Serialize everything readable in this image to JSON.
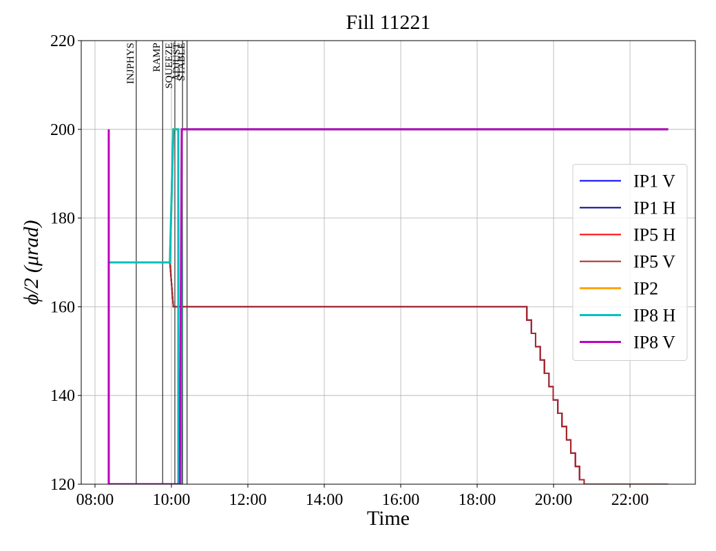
{
  "chart_data": {
    "type": "line",
    "title": "Fill 11221",
    "x_label": "Time",
    "y_label": "ϕ/2 (μrad)",
    "xlim": [
      7.64,
      23.71
    ],
    "ylim": [
      120,
      220
    ],
    "xticks": [
      {
        "value": 8,
        "label": "08:00"
      },
      {
        "value": 10,
        "label": "10:00"
      },
      {
        "value": 12,
        "label": "12:00"
      },
      {
        "value": 14,
        "label": "14:00"
      },
      {
        "value": 16,
        "label": "16:00"
      },
      {
        "value": 18,
        "label": "18:00"
      },
      {
        "value": 20,
        "label": "20:00"
      },
      {
        "value": 22,
        "label": "22:00"
      }
    ],
    "yticks": [
      120,
      140,
      160,
      180,
      200,
      220
    ],
    "grid": true,
    "legend_position": "right",
    "phases": [
      {
        "label": "INJPHYS",
        "x": 9.08
      },
      {
        "label": "RAMP",
        "x": 9.77
      },
      {
        "label": "SQUEEZE",
        "x": 10.09
      },
      {
        "label": "ADJUST",
        "x": 10.29
      },
      {
        "label": "STABLE",
        "x": 10.41
      }
    ],
    "x": [
      8.36,
      9.96,
      10.05,
      19.3,
      19.3,
      19.42,
      19.42,
      19.53,
      19.53,
      19.65,
      19.65,
      19.76,
      19.76,
      19.88,
      19.88,
      19.99,
      19.99,
      20.11,
      20.11,
      20.22,
      20.22,
      20.34,
      20.34,
      20.45,
      20.45,
      20.57,
      20.57,
      20.68,
      20.68,
      20.8,
      20.8,
      23.0
    ],
    "series": [
      {
        "name": "IP1 V",
        "color": "#0000ff",
        "width": 2,
        "values": [
          170,
          170,
          160,
          160,
          157,
          157,
          154,
          154,
          151,
          151,
          148,
          148,
          145,
          145,
          142,
          142,
          139,
          139,
          136,
          136,
          133,
          133,
          130,
          130,
          127,
          127,
          124,
          124,
          121,
          121,
          120,
          120
        ]
      },
      {
        "name": "IP1 H",
        "color": "#00008b",
        "width": 2,
        "values": [
          170,
          170,
          160,
          160,
          157,
          157,
          154,
          154,
          151,
          151,
          148,
          148,
          145,
          145,
          142,
          142,
          139,
          139,
          136,
          136,
          133,
          133,
          130,
          130,
          127,
          127,
          124,
          124,
          121,
          121,
          120,
          120
        ]
      },
      {
        "name": "IP5 H",
        "color": "#ff0000",
        "width": 2,
        "values": [
          170,
          170,
          160,
          160,
          157,
          157,
          154,
          154,
          151,
          151,
          148,
          148,
          145,
          145,
          142,
          142,
          139,
          139,
          136,
          136,
          133,
          133,
          130,
          130,
          127,
          127,
          124,
          124,
          121,
          121,
          120,
          120
        ]
      },
      {
        "name": "IP5 V",
        "color": "#a52a2a",
        "width": 2,
        "values": [
          170,
          170,
          160,
          160,
          157,
          157,
          154,
          154,
          151,
          151,
          148,
          148,
          145,
          145,
          142,
          142,
          139,
          139,
          136,
          136,
          133,
          133,
          130,
          130,
          127,
          127,
          124,
          124,
          121,
          121,
          120,
          120
        ]
      },
      {
        "name": "IP2",
        "color": "#ffa500",
        "width": 3,
        "x": [
          8.36,
          8.36,
          9.96,
          10.05,
          10.18,
          10.18,
          10.25,
          10.27,
          23.0
        ],
        "values": [
          120,
          170,
          170,
          200,
          200,
          120,
          120,
          200,
          200
        ]
      },
      {
        "name": "IP8 H",
        "color": "#00bfbf",
        "width": 3,
        "x": [
          8.36,
          8.36,
          9.96,
          10.05,
          10.18,
          10.18,
          10.25,
          10.27,
          23.0
        ],
        "values": [
          120,
          170,
          170,
          200,
          200,
          120,
          120,
          200,
          200
        ]
      },
      {
        "name": "IP8 V",
        "color": "#bf00bf",
        "width": 3,
        "x": [
          8.36,
          8.36,
          10.22,
          10.27,
          23.0
        ],
        "values": [
          200,
          120,
          120,
          200,
          200
        ]
      }
    ]
  }
}
